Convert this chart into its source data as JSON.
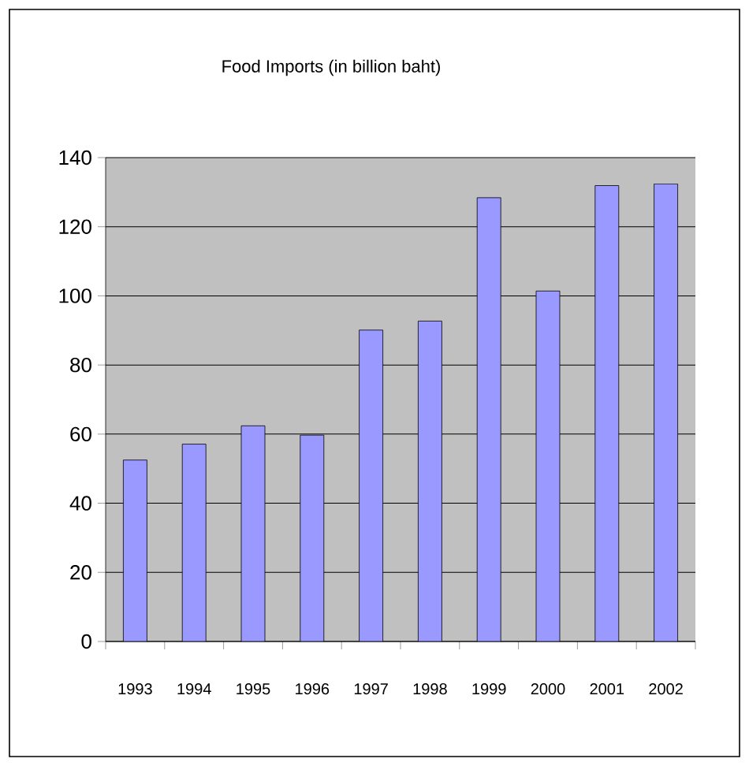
{
  "chart_data": {
    "type": "bar",
    "title": "Food Imports (in billion baht)",
    "categories": [
      "1993",
      "1994",
      "1995",
      "1996",
      "1997",
      "1998",
      "1999",
      "2000",
      "2001",
      "2002"
    ],
    "values": [
      52.5,
      57.1,
      62.4,
      59.7,
      90.1,
      92.7,
      128.4,
      101.4,
      131.9,
      132.4
    ],
    "color": "#9999ff",
    "ylim": [
      0,
      140
    ],
    "yticks": [
      0,
      20,
      40,
      60,
      80,
      100,
      120,
      140
    ],
    "grid": "y"
  }
}
